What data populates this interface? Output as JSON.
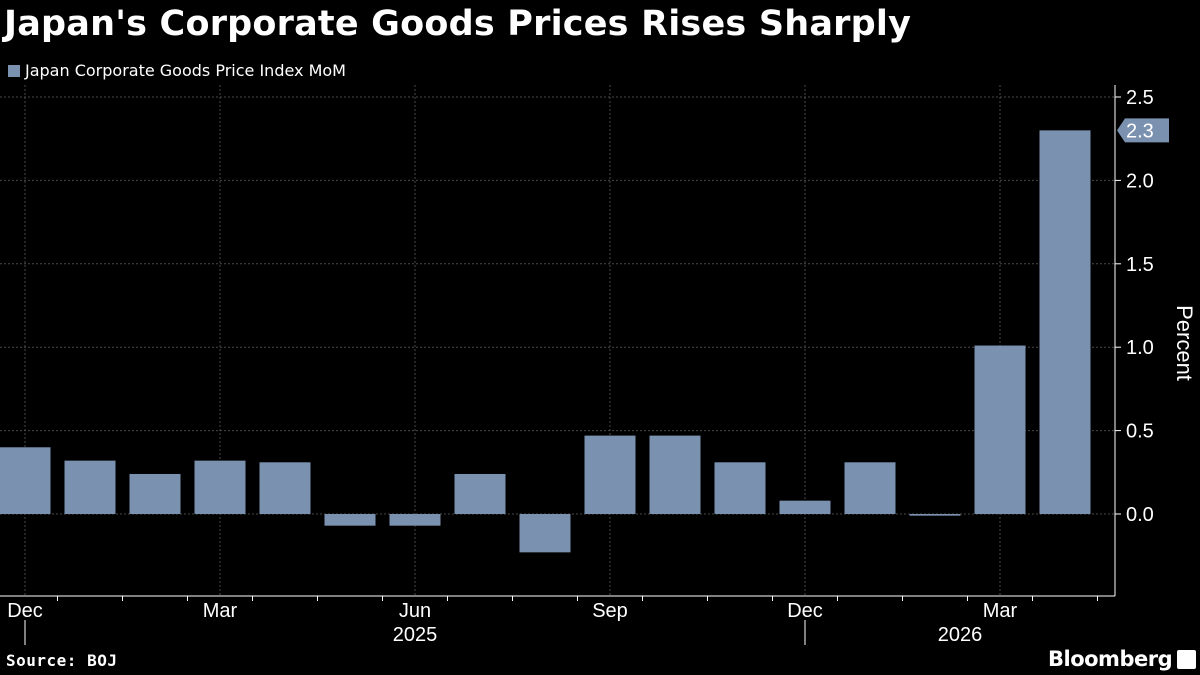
{
  "header": {
    "title": "Japan's Corporate Goods Prices Rises Sharply"
  },
  "footer": {
    "source": "Source: BOJ",
    "brand": "Bloomberg"
  },
  "colors": {
    "background": "#000000",
    "bar": "#7A91B0",
    "grid": "#4a4a4a",
    "text": "#ffffff"
  },
  "chart_data": {
    "type": "bar",
    "title": "Japan's Corporate Goods Prices Rises Sharply",
    "series": [
      {
        "name": "Japan Corporate Goods Price Index MoM",
        "color": "#7A91B0",
        "values": [
          0.4,
          0.32,
          0.24,
          0.32,
          0.31,
          -0.07,
          -0.07,
          0.24,
          -0.23,
          0.47,
          0.47,
          0.31,
          0.08,
          0.31,
          -0.01,
          1.01,
          2.3
        ]
      }
    ],
    "categories": [
      "Dec 2024",
      "Jan 2025",
      "Feb 2025",
      "Mar 2025",
      "Apr 2025",
      "May 2025",
      "Jun 2025",
      "Jul 2025",
      "Aug 2025",
      "Sep 2025",
      "Oct 2025",
      "Nov 2025",
      "Dec 2025",
      "Jan 2026",
      "Feb 2026",
      "Mar 2026",
      "Apr 2026"
    ],
    "x_tick_labels": [
      {
        "label": "Dec",
        "index": 0
      },
      {
        "label": "Mar",
        "index": 3
      },
      {
        "label": "Jun",
        "index": 6
      },
      {
        "label": "Sep",
        "index": 9
      },
      {
        "label": "Dec",
        "index": 12
      },
      {
        "label": "Mar",
        "index": 15
      }
    ],
    "year_labels": [
      {
        "label": "2025",
        "index": 6
      },
      {
        "label": "2026",
        "index": 15
      }
    ],
    "ylabel": "Percent",
    "xlabel": "",
    "ylim": [
      -0.5,
      2.5
    ],
    "y_ticks": [
      0.0,
      0.5,
      1.0,
      1.5,
      2.0,
      2.5
    ],
    "y_tick_labels": [
      "0.0",
      "0.5",
      "1.0",
      "1.5",
      "2.0",
      "2.5"
    ],
    "last_value_label": "2.3",
    "grid": true,
    "legend_position": "top-left",
    "y_axis_position": "right"
  }
}
